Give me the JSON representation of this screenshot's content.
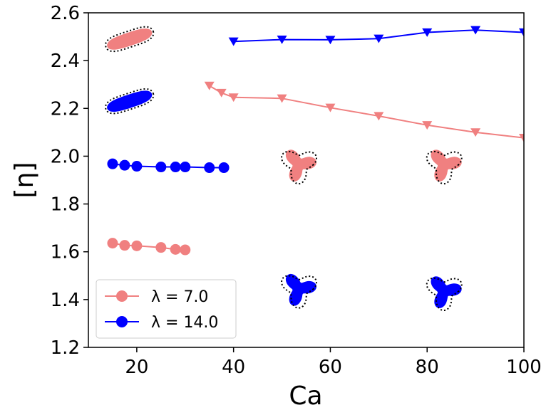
{
  "chart_data": {
    "type": "line",
    "xlabel": "Ca",
    "ylabel": "[η]",
    "xlim": [
      10,
      100
    ],
    "ylim": [
      1.2,
      2.6
    ],
    "xticks": [
      20,
      40,
      60,
      80,
      100
    ],
    "yticks": [
      1.2,
      1.4,
      1.6,
      1.8,
      2.0,
      2.2,
      2.4,
      2.6
    ],
    "grid": false,
    "legend_position": "lower-left",
    "series": [
      {
        "name": "λ = 7.0",
        "marker": "circle",
        "color": "#f08080",
        "x": [
          15,
          17.5,
          20,
          25,
          28,
          30
        ],
        "y": [
          1.636,
          1.627,
          1.625,
          1.618,
          1.61,
          1.608
        ]
      },
      {
        "name": "λ = 14.0",
        "marker": "circle",
        "color": "#0000ff",
        "x": [
          15,
          17.5,
          20,
          25,
          28,
          30,
          35,
          38
        ],
        "y": [
          1.968,
          1.962,
          1.958,
          1.955,
          1.955,
          1.955,
          1.952,
          1.952
        ]
      },
      {
        "marker": "triangle-down",
        "color": "#f08080",
        "x": [
          35,
          37.5,
          40,
          50,
          60,
          70,
          80,
          90,
          100
        ],
        "y": [
          2.295,
          2.265,
          2.246,
          2.242,
          2.203,
          2.168,
          2.13,
          2.1,
          2.077
        ]
      },
      {
        "marker": "triangle-down",
        "color": "#0000ff",
        "x": [
          40,
          50,
          60,
          70,
          80,
          90,
          100
        ],
        "y": [
          2.48,
          2.488,
          2.487,
          2.492,
          2.518,
          2.528,
          2.518
        ]
      }
    ],
    "shape_insets": [
      {
        "kind": "elongated",
        "color": "#f08080",
        "x": 18.5,
        "y": 2.49
      },
      {
        "kind": "elongated",
        "color": "#0000ff",
        "x": 18.5,
        "y": 2.23
      },
      {
        "kind": "tri-lobe",
        "color": "#f08080",
        "x": 53.5,
        "y": 1.965
      },
      {
        "kind": "tri-lobe",
        "color": "#f08080",
        "x": 83.5,
        "y": 1.965
      },
      {
        "kind": "tri-lobe",
        "color": "#0000ff",
        "x": 53.5,
        "y": 1.445
      },
      {
        "kind": "tri-lobe",
        "color": "#0000ff",
        "x": 83.5,
        "y": 1.435
      }
    ]
  }
}
